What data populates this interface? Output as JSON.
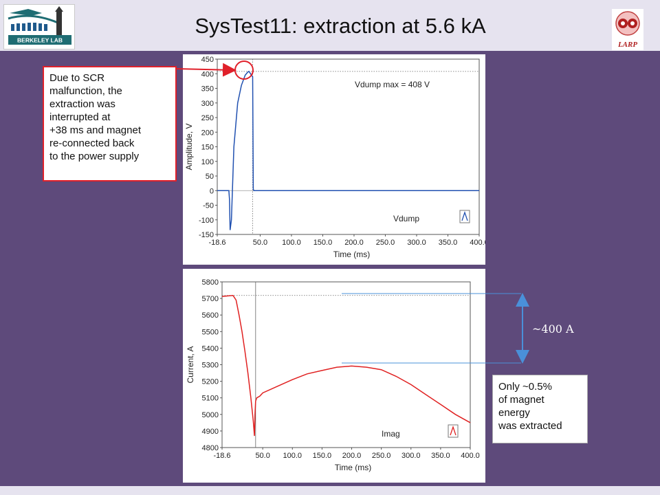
{
  "header": {
    "title": "SysTest11: extraction at 5.6 kA",
    "left_logo_text": "BERKELEY LAB",
    "right_logo_text": "LARP"
  },
  "callout": {
    "lines": [
      "Due to SCR",
      "malfunction, the",
      "extraction was",
      "interrupted at",
      "+38 ms and magnet",
      "re-connected back",
      "to the power supply"
    ]
  },
  "note": {
    "lines": [
      "Only ~0.5%",
      "of magnet",
      "energy",
      "was extracted"
    ]
  },
  "delta_label": "~400 A",
  "colors": {
    "background": "#5e4a7b",
    "header": "#e6e3ef",
    "vdump_trace": "#2050b0",
    "imag_trace": "#e02020",
    "callout_border": "#e0202a",
    "arrow": "#4a90d9"
  },
  "chart_data": [
    {
      "type": "line",
      "title": "",
      "xlabel": "Time (ms)",
      "ylabel": "Amplitude, V",
      "xlim": [
        -18.6,
        400
      ],
      "ylim": [
        -150,
        450
      ],
      "x_ticks": [
        "-18.6",
        "50.0",
        "100.0",
        "150.0",
        "200.0",
        "250.0",
        "300.0",
        "350.0",
        "400.0"
      ],
      "y_ticks": [
        "450",
        "400",
        "350",
        "300",
        "250",
        "200",
        "150",
        "100",
        "50",
        "0",
        "-50",
        "-100",
        "-150"
      ],
      "annotation": "Vdump max = 408 V",
      "legend": "Vdump",
      "grid": false,
      "series": [
        {
          "name": "Vdump",
          "x": [
            -18.6,
            0,
            1,
            2,
            4,
            8,
            14,
            20,
            26,
            30,
            32,
            34,
            36,
            38,
            39,
            40,
            50,
            100,
            150,
            200,
            250,
            300,
            350,
            400
          ],
          "y": [
            0,
            0,
            -30,
            -135,
            -100,
            150,
            300,
            360,
            395,
            405,
            408,
            402,
            395,
            390,
            5,
            0,
            0,
            0,
            0,
            0,
            0,
            0,
            0,
            0
          ]
        }
      ]
    },
    {
      "type": "line",
      "title": "",
      "xlabel": "Time (ms)",
      "ylabel": "Current, A",
      "xlim": [
        -18.6,
        400
      ],
      "ylim": [
        4800,
        5800
      ],
      "x_ticks": [
        "-18.6",
        "50.0",
        "100.0",
        "150.0",
        "200.0",
        "250.0",
        "300.0",
        "350.0",
        "400.0"
      ],
      "y_ticks": [
        "5800",
        "5700",
        "5600",
        "5500",
        "5400",
        "5300",
        "5200",
        "5100",
        "5000",
        "4900",
        "4800"
      ],
      "legend": "Imag",
      "grid": false,
      "series": [
        {
          "name": "Imag",
          "x": [
            -18.6,
            -10,
            0,
            5,
            10,
            15,
            20,
            25,
            30,
            34,
            36,
            37,
            38,
            40,
            45,
            50,
            75,
            100,
            125,
            150,
            175,
            200,
            225,
            250,
            275,
            300,
            325,
            350,
            375,
            400
          ],
          "y": [
            5712,
            5715,
            5718,
            5690,
            5600,
            5500,
            5380,
            5250,
            5100,
            4960,
            4870,
            5000,
            5080,
            5100,
            5110,
            5130,
            5170,
            5210,
            5245,
            5265,
            5285,
            5292,
            5285,
            5270,
            5230,
            5180,
            5120,
            5060,
            5000,
            4950
          ]
        }
      ]
    }
  ]
}
